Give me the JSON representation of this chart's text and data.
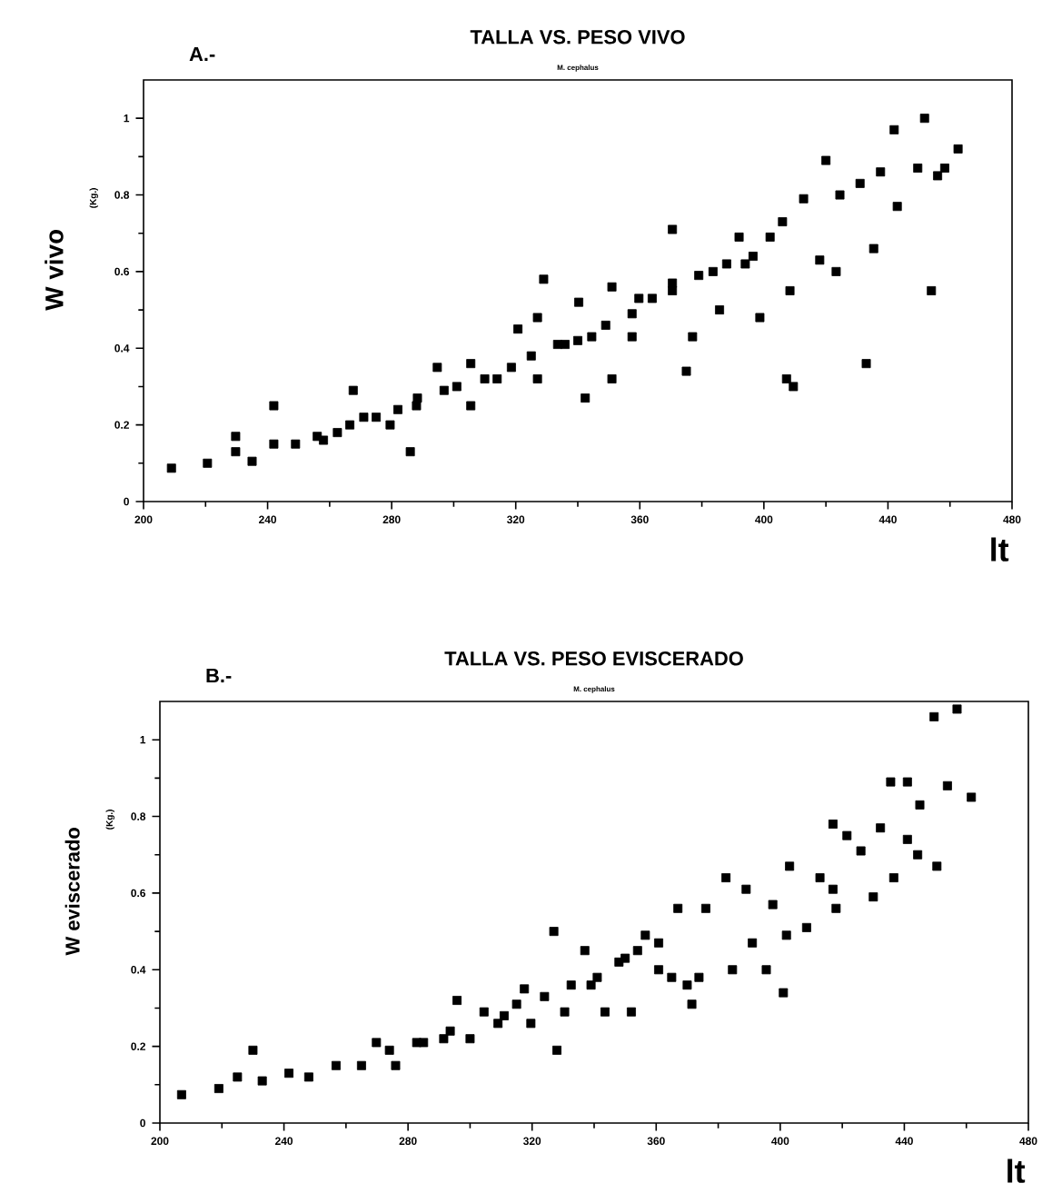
{
  "chart_data": [
    {
      "type": "scatter",
      "title": "TALLA VS. PESO VIVO",
      "subtitle": "M. cephalus",
      "xlabel": "lt",
      "ylabel": "W vivo",
      "annotations": [
        "A.-",
        "(Kg.)"
      ],
      "marker": "square",
      "grid": false,
      "xlim": [
        200,
        480
      ],
      "xticks": [
        200,
        240,
        280,
        320,
        360,
        400,
        440,
        480
      ],
      "ylim": [
        0,
        1.1
      ],
      "yticks": [
        0,
        0.2,
        0.4,
        0.6,
        0.8,
        1
      ],
      "series": [
        {
          "color": "#000000",
          "x": [
            209,
            220.6,
            229.7,
            229.7,
            235,
            242,
            242,
            249,
            258,
            266.5,
            267.6,
            275,
            279.5,
            286,
            288,
            294.7,
            296.9,
            305.5,
            305.5,
            314,
            320.7,
            327,
            329,
            327,
            335.9,
            340.3,
            342.4,
            344.5,
            351,
            351,
            359.7,
            357.5,
            370.5,
            370.5,
            375,
            377,
            383.6,
            385.7,
            392,
            396.5,
            398.7,
            402,
            406,
            407.3,
            409.5,
            412.8,
            408.4,
            418,
            420,
            423.3,
            424.5,
            431,
            433,
            435.4,
            437.6,
            442,
            443,
            449.6,
            451.8,
            454,
            456,
            458.3,
            462.6,
            256,
            262.5,
            271,
            282,
            288.3,
            301,
            310,
            318.6,
            325,
            333.5,
            340,
            349,
            357.5,
            364,
            370.5,
            379,
            388,
            394
          ],
          "values": [
            0.087,
            0.1,
            0.13,
            0.17,
            0.105,
            0.25,
            0.15,
            0.15,
            0.16,
            0.2,
            0.29,
            0.22,
            0.2,
            0.13,
            0.25,
            0.35,
            0.29,
            0.36,
            0.25,
            0.32,
            0.45,
            0.48,
            0.58,
            0.32,
            0.41,
            0.52,
            0.27,
            0.43,
            0.56,
            0.32,
            0.53,
            0.43,
            0.71,
            0.55,
            0.34,
            0.43,
            0.6,
            0.5,
            0.69,
            0.64,
            0.48,
            0.69,
            0.73,
            0.32,
            0.3,
            0.79,
            0.55,
            0.63,
            0.89,
            0.6,
            0.8,
            0.83,
            0.36,
            0.66,
            0.86,
            0.97,
            0.77,
            0.87,
            1.0,
            0.55,
            0.85,
            0.87,
            0.92,
            0.17,
            0.18,
            0.22,
            0.24,
            0.27,
            0.3,
            0.32,
            0.35,
            0.38,
            0.41,
            0.42,
            0.46,
            0.49,
            0.53,
            0.57,
            0.59,
            0.62,
            0.62
          ]
        }
      ]
    },
    {
      "type": "scatter",
      "title": "TALLA VS. PESO EVISCERADO",
      "subtitle": "M. cephalus",
      "xlabel": "lt",
      "ylabel": "W eviscerado",
      "annotations": [
        "B.-",
        "(Kg.)"
      ],
      "marker": "square",
      "grid": false,
      "xlim": [
        200,
        480
      ],
      "xticks": [
        200,
        240,
        280,
        320,
        360,
        400,
        440,
        480
      ],
      "ylim": [
        0,
        1.1
      ],
      "yticks": [
        0,
        0.2,
        0.4,
        0.6,
        0.8,
        1
      ],
      "series": [
        {
          "color": "#000000",
          "x": [
            207,
            219,
            225,
            230,
            233,
            241.6,
            248,
            256.8,
            265,
            269.8,
            276,
            282.8,
            291.5,
            295.8,
            300,
            304.5,
            311,
            317.5,
            319.6,
            327,
            328,
            330.5,
            337,
            339,
            343.5,
            350,
            352,
            356.5,
            360.8,
            367,
            371.5,
            373.8,
            376,
            382.5,
            384.6,
            389,
            391,
            395.5,
            397.6,
            401,
            402,
            403,
            408.5,
            412.8,
            417,
            417,
            418,
            421.5,
            426,
            430,
            432.3,
            435.6,
            436.6,
            441,
            441,
            444.3,
            445,
            449.6,
            450.5,
            453.9,
            457,
            461.6,
            274,
            285,
            293.6,
            309,
            315,
            324,
            332.6,
            341,
            348,
            354,
            360.8,
            365,
            370
          ],
          "values": [
            0.074,
            0.09,
            0.12,
            0.19,
            0.11,
            0.13,
            0.12,
            0.15,
            0.15,
            0.21,
            0.15,
            0.21,
            0.22,
            0.32,
            0.22,
            0.29,
            0.28,
            0.35,
            0.26,
            0.5,
            0.19,
            0.29,
            0.45,
            0.36,
            0.29,
            0.43,
            0.29,
            0.49,
            0.4,
            0.56,
            0.31,
            0.38,
            0.56,
            0.64,
            0.4,
            0.61,
            0.47,
            0.4,
            0.57,
            0.34,
            0.49,
            0.67,
            0.51,
            0.64,
            0.61,
            0.78,
            0.56,
            0.75,
            0.71,
            0.59,
            0.77,
            0.89,
            0.64,
            0.74,
            0.89,
            0.7,
            0.83,
            1.06,
            0.67,
            0.88,
            1.08,
            0.85,
            0.19,
            0.21,
            0.24,
            0.26,
            0.31,
            0.33,
            0.36,
            0.38,
            0.42,
            0.45,
            0.47,
            0.38,
            0.36
          ]
        }
      ]
    }
  ]
}
